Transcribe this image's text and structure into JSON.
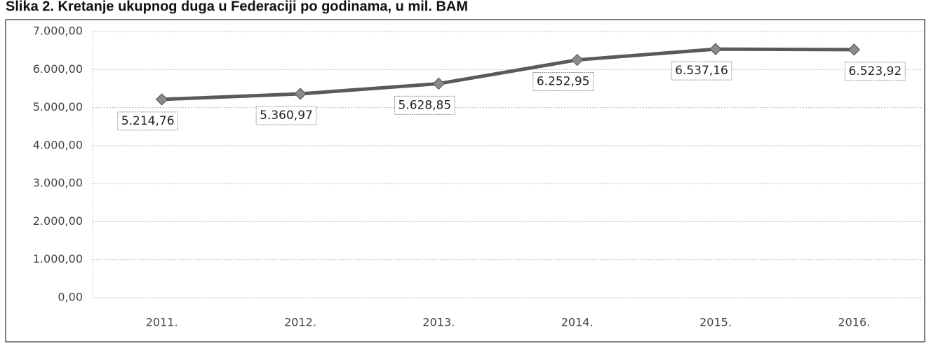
{
  "chart_data": {
    "type": "line",
    "title": "Slika 2. Kretanje ukupnog duga u Federaciji po godinama, u mil. BAM",
    "categories": [
      "2011.",
      "2012.",
      "2013.",
      "2014.",
      "2015.",
      "2016."
    ],
    "series": [
      {
        "name": "Ukupni dug",
        "color": "#5a5a5a",
        "values": [
          5214.76,
          5360.97,
          5628.85,
          6252.95,
          6537.16,
          6523.92
        ],
        "value_labels": [
          "5.214,76",
          "5.360,97",
          "5.628,85",
          "6.252,95",
          "6.537,16",
          "6.523,92"
        ]
      }
    ],
    "ylim": [
      0,
      7000
    ],
    "yticks": [
      {
        "value": 0,
        "label": "0,00"
      },
      {
        "value": 1000,
        "label": "1.000,00"
      },
      {
        "value": 2000,
        "label": "2.000,00"
      },
      {
        "value": 3000,
        "label": "3.000,00"
      },
      {
        "value": 4000,
        "label": "4.000,00"
      },
      {
        "value": 5000,
        "label": "5.000,00"
      },
      {
        "value": 6000,
        "label": "6.000,00"
      },
      {
        "value": 7000,
        "label": "7.000,00"
      }
    ],
    "grid": true
  }
}
